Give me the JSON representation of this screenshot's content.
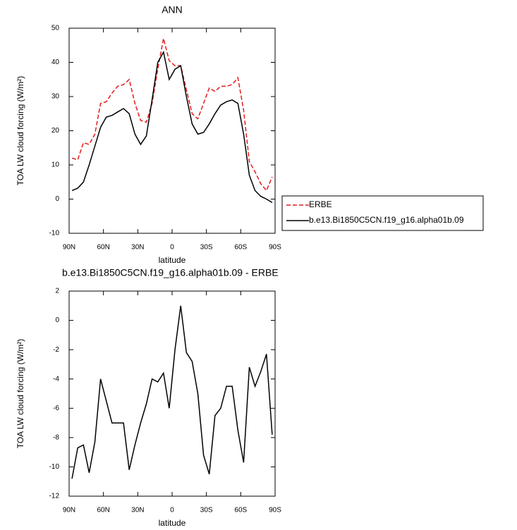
{
  "chart_data": [
    {
      "type": "line",
      "title": "ANN",
      "xlabel": "latitude",
      "ylabel": "TOA LW cloud forcing (W/m²)",
      "x": [
        87.5,
        82.5,
        77.5,
        72.5,
        67.5,
        62.5,
        57.5,
        52.5,
        47.5,
        42.5,
        37.5,
        32.5,
        27.5,
        22.5,
        17.5,
        12.5,
        7.5,
        2.5,
        -2.5,
        -7.5,
        -12.5,
        -17.5,
        -22.5,
        -27.5,
        -32.5,
        -37.5,
        -42.5,
        -47.5,
        -52.5,
        -57.5,
        -62.5,
        -67.5,
        -72.5,
        -77.5,
        -82.5,
        -87.5
      ],
      "series": [
        {
          "name": "ERBE",
          "color": "#e41a1c",
          "dash": true,
          "values": [
            12,
            11.5,
            16.5,
            16,
            19,
            28,
            28.5,
            31,
            33,
            33.5,
            35,
            28,
            23,
            22.5,
            28,
            38,
            47,
            40.5,
            39,
            39,
            32,
            25,
            23.5,
            28,
            32.5,
            31.5,
            33,
            33,
            33.5,
            35.5,
            26,
            11,
            8,
            4.5,
            2.5,
            6.5
          ]
        },
        {
          "name": "b.e13.Bi1850C5CN.f19_g16.alpha01b.09",
          "color": "#000000",
          "dash": false,
          "values": [
            2.5,
            3.2,
            5,
            10,
            15.5,
            21,
            24,
            24.5,
            25.5,
            26.5,
            25,
            19,
            16,
            18.5,
            29,
            40,
            43,
            35,
            38,
            39,
            30,
            22,
            19,
            19.5,
            22,
            25,
            27.5,
            28.5,
            29,
            28,
            19,
            7,
            2.5,
            0.8,
            0,
            -1
          ]
        }
      ],
      "xlim": [
        90,
        -90
      ],
      "xticks": [
        {
          "value": 90,
          "label": "90N"
        },
        {
          "value": 60,
          "label": "60N"
        },
        {
          "value": 30,
          "label": "30N"
        },
        0,
        {
          "value": -30,
          "label": "30S"
        },
        {
          "value": -60,
          "label": "60S"
        },
        {
          "value": -90,
          "label": "90S"
        }
      ],
      "ylim": [
        -10,
        50
      ],
      "yticks": [
        -10,
        0,
        10,
        20,
        30,
        40,
        50
      ],
      "legend": "right"
    },
    {
      "type": "line",
      "title": "b.e13.Bi1850C5CN.f19_g16.alpha01b.09 - ERBE",
      "xlabel": "latitude",
      "ylabel": "TOA LW cloud forcing (W/m²)",
      "x": [
        87.5,
        82.5,
        77.5,
        72.5,
        67.5,
        62.5,
        57.5,
        52.5,
        47.5,
        42.5,
        37.5,
        32.5,
        27.5,
        22.5,
        17.5,
        12.5,
        7.5,
        2.5,
        -2.5,
        -7.5,
        -12.5,
        -17.5,
        -22.5,
        -27.5,
        -32.5,
        -37.5,
        -42.5,
        -47.5,
        -52.5,
        -57.5,
        -62.5,
        -67.5,
        -72.5,
        -77.5,
        -82.5,
        -87.5
      ],
      "series": [
        {
          "name": "b.e13.Bi1850C5CN.f19_g16.alpha01b.09 - ERBE",
          "color": "#000000",
          "dash": false,
          "values": [
            -10.8,
            -8.7,
            -8.5,
            -10.4,
            -8.3,
            -4.0,
            -5.5,
            -7.0,
            -7.0,
            -7.0,
            -10.2,
            -8.5,
            -7.0,
            -5.7,
            -4.0,
            -4.2,
            -3.6,
            -6.0,
            -2.0,
            1.0,
            -2.2,
            -2.8,
            -5.0,
            -9.2,
            -10.5,
            -6.5,
            -6.0,
            -4.5,
            -4.5,
            -7.5,
            -9.7,
            -3.2,
            -4.5,
            -3.5,
            -2.3,
            -7.8
          ]
        }
      ],
      "xlim": [
        90,
        -90
      ],
      "xticks": [
        {
          "value": 90,
          "label": "90N"
        },
        {
          "value": 60,
          "label": "60N"
        },
        {
          "value": 30,
          "label": "30N"
        },
        0,
        {
          "value": -30,
          "label": "30S"
        },
        {
          "value": -60,
          "label": "60S"
        },
        {
          "value": -90,
          "label": "90S"
        }
      ],
      "ylim": [
        -12,
        2
      ],
      "yticks": [
        -12,
        -10,
        -8,
        -6,
        -4,
        -2,
        0,
        2
      ]
    }
  ]
}
